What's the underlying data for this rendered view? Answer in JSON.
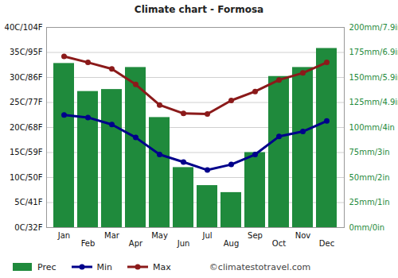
{
  "chart_data": {
    "type": "bar",
    "title": "Climate chart - Formosa",
    "categories": [
      "Jan",
      "Feb",
      "Mar",
      "Apr",
      "May",
      "Jun",
      "Jul",
      "Aug",
      "Sep",
      "Oct",
      "Nov",
      "Dec"
    ],
    "series": [
      {
        "name": "Prec",
        "type": "bar",
        "axis": "y2",
        "color": "#1f8a3c",
        "values": [
          164,
          136,
          138,
          160,
          110,
          60,
          42,
          35,
          75,
          151,
          160,
          179
        ]
      },
      {
        "name": "Min",
        "type": "line",
        "marker": "circle",
        "color": "#00008b",
        "values": [
          22.5,
          22,
          20.6,
          18,
          14.6,
          13.1,
          11.5,
          12.6,
          14.6,
          18.2,
          19.2,
          21.3
        ]
      },
      {
        "name": "Max",
        "type": "line",
        "marker": "circle",
        "color": "#8b1a1a",
        "values": [
          34.2,
          33,
          31.7,
          28.6,
          24.5,
          22.8,
          22.7,
          25.4,
          27.2,
          29.5,
          30.9,
          33
        ]
      }
    ],
    "ylim": [
      0,
      40
    ],
    "yticks": [
      {
        "value": 0,
        "label": "0C/32F"
      },
      {
        "value": 5,
        "label": "5C/41F"
      },
      {
        "value": 10,
        "label": "10C/50F"
      },
      {
        "value": 15,
        "label": "15C/59F"
      },
      {
        "value": 20,
        "label": "20C/68F"
      },
      {
        "value": 25,
        "label": "25C/77F"
      },
      {
        "value": 30,
        "label": "30C/86F"
      },
      {
        "value": 35,
        "label": "35C/95F"
      },
      {
        "value": 40,
        "label": "40C/104F"
      }
    ],
    "y2lim": [
      0,
      200
    ],
    "y2ticks": [
      {
        "value": 0,
        "label": "0mm/0in"
      },
      {
        "value": 25,
        "label": "25mm/1in"
      },
      {
        "value": 50,
        "label": "50mm/2in"
      },
      {
        "value": 75,
        "label": "75mm/3in"
      },
      {
        "value": 100,
        "label": "100mm/4in"
      },
      {
        "value": 125,
        "label": "125mm/4.9in"
      },
      {
        "value": 150,
        "label": "150mm/5.9in"
      },
      {
        "value": 175,
        "label": "175mm/6.9in"
      },
      {
        "value": 200,
        "label": "200mm/7.9in"
      }
    ],
    "grid": true,
    "legend": "bottom",
    "annotations": [
      "©climatestotravel.com"
    ]
  }
}
